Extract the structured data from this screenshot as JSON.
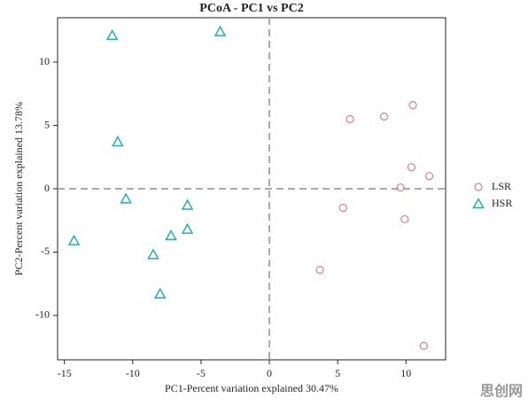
{
  "chart_data": {
    "type": "scatter",
    "title": "PCoA - PC1 vs PC2",
    "x_label": "PC1-Percent variation explained 30.47%",
    "y_label": "PC2-Percent variation explained 13.78%",
    "xlim": [
      -15.5,
      12.9
    ],
    "ylim": [
      -13.5,
      13.5
    ],
    "xticks": [
      -15,
      -10,
      -5,
      0,
      5,
      10
    ],
    "yticks": [
      -10,
      -5,
      0,
      5,
      10
    ],
    "zero_lines": true,
    "legend": "right",
    "series": [
      {
        "name": "LSR",
        "color": "#e07f86",
        "marker": "circle",
        "x": [
          5.9,
          8.4,
          10.5,
          10.4,
          11.7,
          9.6,
          5.4,
          9.9,
          3.7,
          11.3
        ],
        "y": [
          5.5,
          5.7,
          6.6,
          1.7,
          1.0,
          0.1,
          -1.5,
          -2.4,
          -6.4,
          -12.4
        ]
      },
      {
        "name": "HSR",
        "color": "#1fb3aa",
        "marker": "triangle",
        "x": [
          -11.5,
          -3.6,
          -11.1,
          -10.5,
          -14.3,
          -6.0,
          -6.0,
          -7.2,
          -8.5,
          -8.0
        ],
        "y": [
          12.1,
          12.4,
          3.7,
          -0.8,
          -4.1,
          -1.3,
          -3.2,
          -3.7,
          -5.2,
          -8.3
        ]
      }
    ]
  },
  "watermark": "思创网"
}
